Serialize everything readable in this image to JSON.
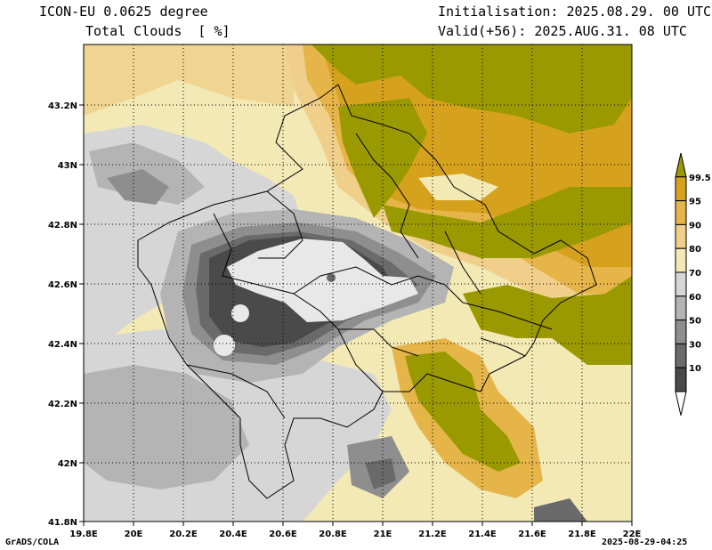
{
  "header": {
    "model": "ICON-EU 0.0625 degree",
    "variable": "Total Clouds  [ %]",
    "init": "Initialisation: 2025.08.29. 00 UTC",
    "valid": "Valid(+56): 2025.AUG.31. 08 UTC"
  },
  "footer": {
    "left": "GrADS/COLA",
    "right": "2025-08-29-04:25"
  },
  "axes": {
    "lon_ticks": [
      "19.8E",
      "20E",
      "20.2E",
      "20.4E",
      "20.6E",
      "20.8E",
      "21E",
      "21.2E",
      "21.4E",
      "21.6E",
      "21.8E",
      "22E"
    ],
    "lat_ticks": [
      "43.2N",
      "43N",
      "42.8N",
      "42.6N",
      "42.4N",
      "42.2N",
      "42N",
      "41.8N"
    ]
  },
  "legend": {
    "labels": [
      "99.5",
      "95",
      "90",
      "80",
      "70",
      "60",
      "50",
      "30",
      "10"
    ],
    "colors": [
      "#9a9a00",
      "#d6a21e",
      "#e5b54a",
      "#efcf8a",
      "#f3e9b5",
      "#d6d6d6",
      "#b4b4b4",
      "#8e8e8e",
      "#6a6a6a",
      "#4a4a4a",
      "#ffffff"
    ]
  }
}
